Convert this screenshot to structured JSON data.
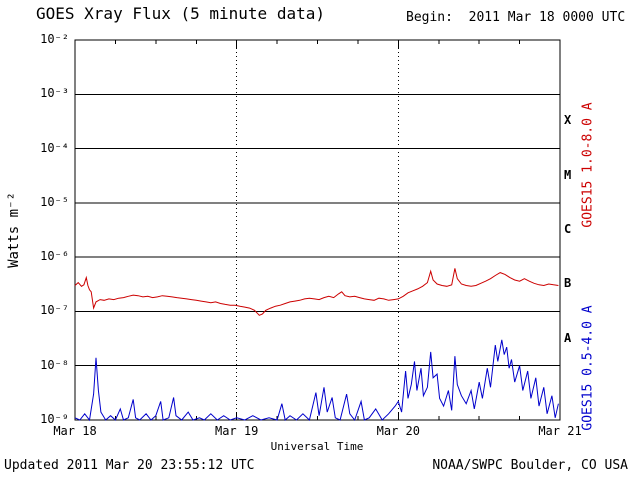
{
  "header": {
    "title": "GOES Xray Flux (5 minute data)",
    "begin_label": "Begin:  2011 Mar 18 0000 UTC"
  },
  "footer": {
    "updated": "Updated 2011 Mar 20 23:55:12 UTC",
    "source": "NOAA/SWPC Boulder, CO USA"
  },
  "chart_data": {
    "type": "line",
    "title": "GOES Xray Flux (5 minute data)",
    "xlabel": "Universal Time",
    "ylabel": "Watts m⁻²",
    "x_ticks": [
      "Mar 18",
      "Mar 19",
      "Mar 20",
      "Mar 21"
    ],
    "x_range_days": [
      0,
      3
    ],
    "y_ticks": [
      "10⁻²",
      "10⁻³",
      "10⁻⁴",
      "10⁻⁵",
      "10⁻⁶",
      "10⁻⁷",
      "10⁻⁸",
      "10⁻⁹"
    ],
    "y_log_range": [
      -9,
      -2
    ],
    "yaxis_scale": "log",
    "grid": {
      "horizontal": "solid black line per decade",
      "vertical": "dashed black line per day"
    },
    "flare_class_labels": [
      "X",
      "M",
      "C",
      "B",
      "A"
    ],
    "axis_color": "#000000",
    "series": [
      {
        "name": "GOES15 1.0-8.0 A",
        "color": "#cc0000",
        "points": [
          [
            0.0,
            3e-07
          ],
          [
            0.02,
            3.4e-07
          ],
          [
            0.04,
            2.9e-07
          ],
          [
            0.055,
            3.1e-07
          ],
          [
            0.07,
            4.2e-07
          ],
          [
            0.08,
            3e-07
          ],
          [
            0.09,
            2.5e-07
          ],
          [
            0.1,
            2.3e-07
          ],
          [
            0.115,
            1.15e-07
          ],
          [
            0.13,
            1.5e-07
          ],
          [
            0.155,
            1.65e-07
          ],
          [
            0.18,
            1.6e-07
          ],
          [
            0.21,
            1.7e-07
          ],
          [
            0.24,
            1.65e-07
          ],
          [
            0.27,
            1.75e-07
          ],
          [
            0.3,
            1.8e-07
          ],
          [
            0.33,
            1.9e-07
          ],
          [
            0.36,
            2e-07
          ],
          [
            0.39,
            1.95e-07
          ],
          [
            0.42,
            1.85e-07
          ],
          [
            0.45,
            1.9e-07
          ],
          [
            0.48,
            1.8e-07
          ],
          [
            0.51,
            1.85e-07
          ],
          [
            0.54,
            1.95e-07
          ],
          [
            0.57,
            1.9e-07
          ],
          [
            0.6,
            1.85e-07
          ],
          [
            0.63,
            1.8e-07
          ],
          [
            0.66,
            1.75e-07
          ],
          [
            0.69,
            1.7e-07
          ],
          [
            0.72,
            1.65e-07
          ],
          [
            0.75,
            1.6e-07
          ],
          [
            0.78,
            1.55e-07
          ],
          [
            0.81,
            1.5e-07
          ],
          [
            0.84,
            1.45e-07
          ],
          [
            0.87,
            1.5e-07
          ],
          [
            0.9,
            1.4e-07
          ],
          [
            0.93,
            1.35e-07
          ],
          [
            0.96,
            1.3e-07
          ],
          [
            0.99,
            1.3e-07
          ],
          [
            1.02,
            1.25e-07
          ],
          [
            1.05,
            1.2e-07
          ],
          [
            1.08,
            1.15e-07
          ],
          [
            1.11,
            1.05e-07
          ],
          [
            1.14,
            8.5e-08
          ],
          [
            1.16,
            9e-08
          ],
          [
            1.18,
            1.05e-07
          ],
          [
            1.21,
            1.15e-07
          ],
          [
            1.24,
            1.25e-07
          ],
          [
            1.27,
            1.3e-07
          ],
          [
            1.3,
            1.4e-07
          ],
          [
            1.33,
            1.5e-07
          ],
          [
            1.36,
            1.55e-07
          ],
          [
            1.39,
            1.6e-07
          ],
          [
            1.42,
            1.7e-07
          ],
          [
            1.45,
            1.75e-07
          ],
          [
            1.48,
            1.7e-07
          ],
          [
            1.51,
            1.65e-07
          ],
          [
            1.54,
            1.8e-07
          ],
          [
            1.57,
            1.9e-07
          ],
          [
            1.6,
            1.8e-07
          ],
          [
            1.63,
            2.1e-07
          ],
          [
            1.65,
            2.3e-07
          ],
          [
            1.67,
            1.95e-07
          ],
          [
            1.7,
            1.85e-07
          ],
          [
            1.73,
            1.9e-07
          ],
          [
            1.76,
            1.8e-07
          ],
          [
            1.79,
            1.7e-07
          ],
          [
            1.82,
            1.65e-07
          ],
          [
            1.85,
            1.6e-07
          ],
          [
            1.88,
            1.75e-07
          ],
          [
            1.91,
            1.7e-07
          ],
          [
            1.94,
            1.6e-07
          ],
          [
            1.97,
            1.65e-07
          ],
          [
            2.0,
            1.7e-07
          ],
          [
            2.03,
            1.9e-07
          ],
          [
            2.06,
            2.2e-07
          ],
          [
            2.09,
            2.4e-07
          ],
          [
            2.12,
            2.6e-07
          ],
          [
            2.15,
            2.9e-07
          ],
          [
            2.18,
            3.4e-07
          ],
          [
            2.2,
            5.5e-07
          ],
          [
            2.215,
            3.8e-07
          ],
          [
            2.24,
            3.2e-07
          ],
          [
            2.27,
            3e-07
          ],
          [
            2.3,
            2.9e-07
          ],
          [
            2.33,
            3.1e-07
          ],
          [
            2.35,
            6.2e-07
          ],
          [
            2.365,
            4e-07
          ],
          [
            2.39,
            3.2e-07
          ],
          [
            2.42,
            3e-07
          ],
          [
            2.45,
            2.9e-07
          ],
          [
            2.48,
            3e-07
          ],
          [
            2.51,
            3.3e-07
          ],
          [
            2.54,
            3.6e-07
          ],
          [
            2.57,
            4e-07
          ],
          [
            2.6,
            4.6e-07
          ],
          [
            2.63,
            5.2e-07
          ],
          [
            2.66,
            4.8e-07
          ],
          [
            2.69,
            4.2e-07
          ],
          [
            2.72,
            3.8e-07
          ],
          [
            2.75,
            3.6e-07
          ],
          [
            2.78,
            4e-07
          ],
          [
            2.81,
            3.6e-07
          ],
          [
            2.84,
            3.3e-07
          ],
          [
            2.87,
            3.1e-07
          ],
          [
            2.9,
            3e-07
          ],
          [
            2.93,
            3.2e-07
          ],
          [
            2.96,
            3.1e-07
          ],
          [
            2.99,
            3e-07
          ]
        ]
      },
      {
        "name": "GOES15 0.5-4.0 A",
        "color": "#0000cc",
        "points": [
          [
            0.0,
            1.1e-09
          ],
          [
            0.03,
            1e-09
          ],
          [
            0.06,
            1.3e-09
          ],
          [
            0.09,
            1e-09
          ],
          [
            0.115,
            3e-09
          ],
          [
            0.13,
            1.4e-08
          ],
          [
            0.145,
            3.5e-09
          ],
          [
            0.16,
            1.4e-09
          ],
          [
            0.19,
            1e-09
          ],
          [
            0.22,
            1.2e-09
          ],
          [
            0.25,
            1e-09
          ],
          [
            0.28,
            1.6e-09
          ],
          [
            0.3,
            1e-09
          ],
          [
            0.33,
            1.1e-09
          ],
          [
            0.36,
            2.4e-09
          ],
          [
            0.375,
            1.1e-09
          ],
          [
            0.4,
            1e-09
          ],
          [
            0.44,
            1.3e-09
          ],
          [
            0.47,
            1e-09
          ],
          [
            0.5,
            1.2e-09
          ],
          [
            0.53,
            2.2e-09
          ],
          [
            0.545,
            1e-09
          ],
          [
            0.58,
            1.1e-09
          ],
          [
            0.61,
            2.6e-09
          ],
          [
            0.625,
            1.2e-09
          ],
          [
            0.66,
            1e-09
          ],
          [
            0.7,
            1.4e-09
          ],
          [
            0.73,
            1e-09
          ],
          [
            0.77,
            1.1e-09
          ],
          [
            0.8,
            1e-09
          ],
          [
            0.84,
            1.3e-09
          ],
          [
            0.88,
            1e-09
          ],
          [
            0.92,
            1.2e-09
          ],
          [
            0.96,
            1e-09
          ],
          [
            1.0,
            1.1e-09
          ],
          [
            1.05,
            1e-09
          ],
          [
            1.1,
            1.2e-09
          ],
          [
            1.15,
            1e-09
          ],
          [
            1.2,
            1.1e-09
          ],
          [
            1.25,
            1e-09
          ],
          [
            1.28,
            2e-09
          ],
          [
            1.3,
            1e-09
          ],
          [
            1.33,
            1.2e-09
          ],
          [
            1.37,
            1e-09
          ],
          [
            1.41,
            1.3e-09
          ],
          [
            1.45,
            1e-09
          ],
          [
            1.49,
            3.2e-09
          ],
          [
            1.51,
            1.2e-09
          ],
          [
            1.54,
            4e-09
          ],
          [
            1.56,
            1.4e-09
          ],
          [
            1.59,
            2.6e-09
          ],
          [
            1.61,
            1.1e-09
          ],
          [
            1.64,
            1e-09
          ],
          [
            1.68,
            3e-09
          ],
          [
            1.7,
            1.3e-09
          ],
          [
            1.73,
            1e-09
          ],
          [
            1.77,
            2.2e-09
          ],
          [
            1.79,
            1e-09
          ],
          [
            1.82,
            1.1e-09
          ],
          [
            1.86,
            1.6e-09
          ],
          [
            1.9,
            1e-09
          ],
          [
            1.94,
            1.3e-09
          ],
          [
            1.98,
            1.8e-09
          ],
          [
            2.0,
            2.2e-09
          ],
          [
            2.02,
            1.4e-09
          ],
          [
            2.045,
            8e-09
          ],
          [
            2.06,
            2.5e-09
          ],
          [
            2.08,
            4.5e-09
          ],
          [
            2.1,
            1.2e-08
          ],
          [
            2.115,
            3.5e-09
          ],
          [
            2.14,
            9e-09
          ],
          [
            2.155,
            2.8e-09
          ],
          [
            2.18,
            4e-09
          ],
          [
            2.2,
            1.8e-08
          ],
          [
            2.215,
            6e-09
          ],
          [
            2.24,
            7e-09
          ],
          [
            2.255,
            2.5e-09
          ],
          [
            2.28,
            1.8e-09
          ],
          [
            2.31,
            3.5e-09
          ],
          [
            2.33,
            1.5e-09
          ],
          [
            2.35,
            1.5e-08
          ],
          [
            2.365,
            4.5e-09
          ],
          [
            2.39,
            2.8e-09
          ],
          [
            2.42,
            2e-09
          ],
          [
            2.45,
            3.5e-09
          ],
          [
            2.47,
            1.6e-09
          ],
          [
            2.5,
            5e-09
          ],
          [
            2.52,
            2.5e-09
          ],
          [
            2.55,
            9e-09
          ],
          [
            2.57,
            4e-09
          ],
          [
            2.6,
            2.4e-08
          ],
          [
            2.615,
            1.2e-08
          ],
          [
            2.64,
            3e-08
          ],
          [
            2.655,
            1.6e-08
          ],
          [
            2.67,
            2.2e-08
          ],
          [
            2.685,
            9e-09
          ],
          [
            2.7,
            1.3e-08
          ],
          [
            2.72,
            5e-09
          ],
          [
            2.75,
            1e-08
          ],
          [
            2.77,
            3.5e-09
          ],
          [
            2.8,
            8e-09
          ],
          [
            2.82,
            2.5e-09
          ],
          [
            2.85,
            6e-09
          ],
          [
            2.87,
            1.8e-09
          ],
          [
            2.9,
            4e-09
          ],
          [
            2.92,
            1.3e-09
          ],
          [
            2.95,
            2.8e-09
          ],
          [
            2.97,
            1.1e-09
          ],
          [
            2.99,
            2e-09
          ]
        ]
      }
    ]
  }
}
